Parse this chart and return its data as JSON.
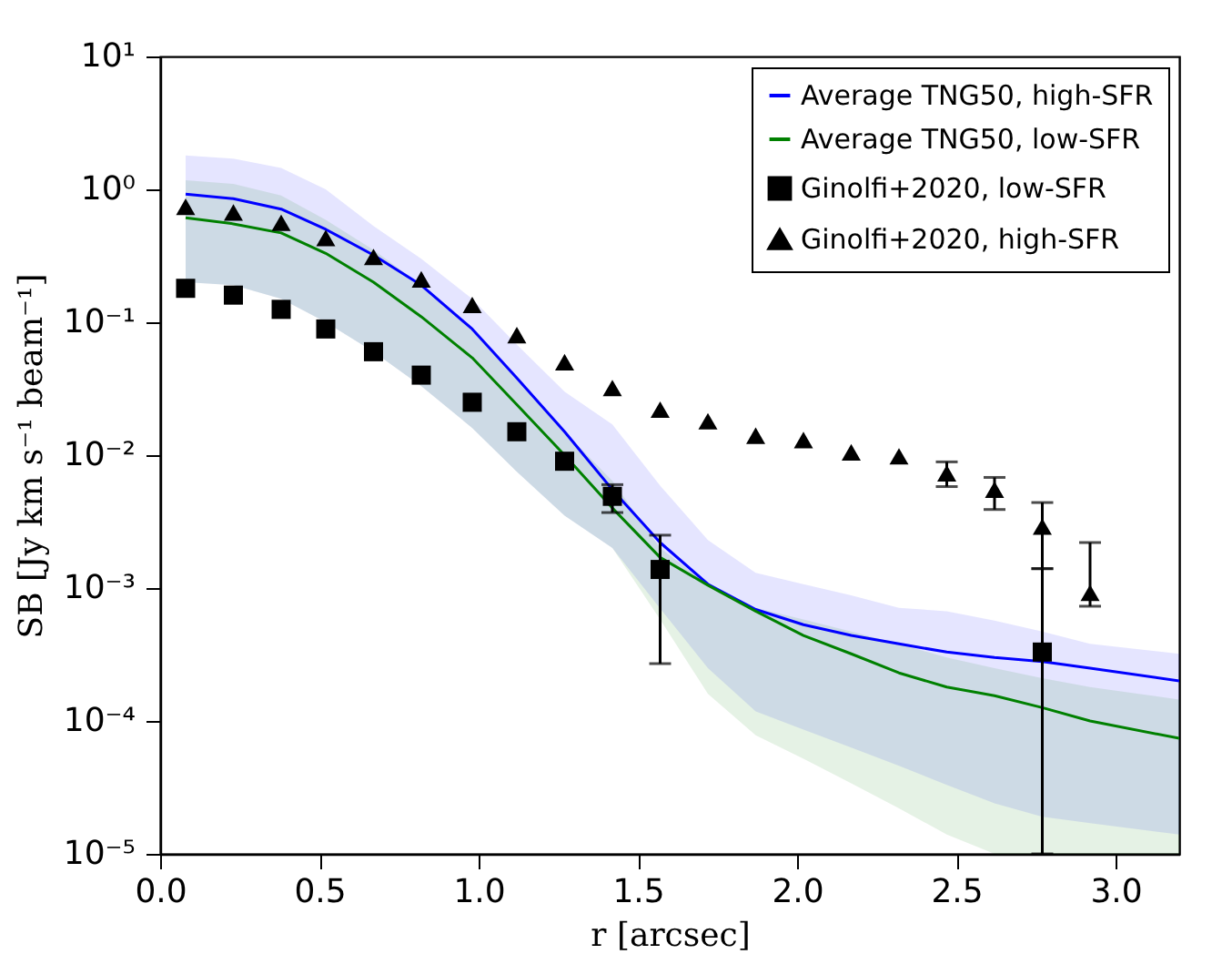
{
  "chart_data": {
    "type": "line",
    "xlabel": "r [arcsec]",
    "ylabel": "SB [Jy km s⁻¹ beam⁻¹]",
    "log": "y",
    "legend": "top right",
    "xlim": [
      0,
      3.2
    ],
    "xticks": [
      {
        "value": 0,
        "label": "0.0"
      },
      {
        "value": 0.5,
        "label": "0.5"
      },
      {
        "value": 1,
        "label": "1.0"
      },
      {
        "value": 1.5,
        "label": "1.5"
      },
      {
        "value": 2,
        "label": "2.0"
      },
      {
        "value": 2.5,
        "label": "2.5"
      },
      {
        "value": 3,
        "label": "3.0"
      }
    ],
    "ylim": [
      1e-05,
      10
    ],
    "yticks": [
      {
        "value": 1e-05,
        "label": "10⁻⁵"
      },
      {
        "value": 0.0001,
        "label": "10⁻⁴"
      },
      {
        "value": 0.001,
        "label": "10⁻³"
      },
      {
        "value": 0.01,
        "label": "10⁻²"
      },
      {
        "value": 0.1,
        "label": "10⁻¹"
      },
      {
        "value": 1,
        "label": "10⁰"
      },
      {
        "value": 10,
        "label": "10¹"
      }
    ],
    "x": [
      0.08,
      0.23,
      0.38,
      0.52,
      0.67,
      0.82,
      0.98,
      1.12,
      1.27,
      1.42,
      1.57,
      1.72,
      1.87,
      2.02,
      2.17,
      2.32,
      2.47,
      2.62,
      2.77,
      2.92
    ],
    "series": [
      {
        "name": "Average TNG50, high-SFR",
        "type": "line",
        "color": "#0000ff",
        "x": [
          0.08,
          0.23,
          0.38,
          0.52,
          0.67,
          0.82,
          0.98,
          1.12,
          1.27,
          1.42,
          1.57,
          1.72,
          1.87,
          2.02,
          2.17,
          2.32,
          2.47,
          2.62,
          2.77,
          2.92,
          3.2
        ],
        "values": [
          0.92,
          0.85,
          0.71,
          0.5,
          0.32,
          0.19,
          0.089,
          0.038,
          0.015,
          0.0055,
          0.0022,
          0.00107,
          0.00069,
          0.00053,
          0.00044,
          0.00038,
          0.00033,
          0.0003,
          0.00028,
          0.00025,
          0.0002
        ],
        "upper": [
          1.8,
          1.7,
          1.45,
          1.0,
          0.53,
          0.3,
          0.15,
          0.068,
          0.03,
          0.017,
          0.0059,
          0.0023,
          0.0013,
          0.00107,
          0.00088,
          0.00071,
          0.00067,
          0.00057,
          0.00047,
          0.00038,
          0.00032
        ],
        "lower": [
          0.2,
          0.19,
          0.15,
          0.1,
          0.06,
          0.033,
          0.016,
          0.0075,
          0.0035,
          0.002,
          0.0007,
          0.00025,
          0.000118,
          8.6e-05,
          6.3e-05,
          4.6e-05,
          3.3e-05,
          2.4e-05,
          1.9e-05,
          1.7e-05,
          1.4e-05
        ]
      },
      {
        "name": "Average TNG50, low-SFR",
        "type": "line",
        "color": "#008000",
        "x": [
          0.08,
          0.23,
          0.38,
          0.52,
          0.67,
          0.82,
          0.98,
          1.12,
          1.27,
          1.42,
          1.57,
          1.72,
          1.87,
          2.02,
          2.17,
          2.32,
          2.47,
          2.62,
          2.77,
          2.92,
          3.2
        ],
        "values": [
          0.61,
          0.55,
          0.47,
          0.33,
          0.2,
          0.11,
          0.054,
          0.024,
          0.01,
          0.004,
          0.0017,
          0.00105,
          0.00067,
          0.00044,
          0.00032,
          0.00023,
          0.00018,
          0.000155,
          0.000126,
          0.0001,
          7.4e-05
        ],
        "upper": [
          1.17,
          1.1,
          0.9,
          0.59,
          0.35,
          0.19,
          0.089,
          0.037,
          0.015,
          0.0064,
          0.002,
          0.00107,
          0.00071,
          0.00058,
          0.00047,
          0.00038,
          0.0003,
          0.00025,
          0.00021,
          0.00018,
          0.000145
        ],
        "lower": [
          0.2,
          0.19,
          0.15,
          0.1,
          0.06,
          0.033,
          0.016,
          0.0075,
          0.0035,
          0.002,
          0.00058,
          0.00016,
          7.8e-05,
          5.2e-05,
          3.4e-05,
          2.2e-05,
          1.4e-05,
          1e-05,
          1e-05,
          1e-05,
          1e-05
        ]
      },
      {
        "name": "Ginolfi+2020, low-SFR",
        "type": "scatter",
        "marker": "square",
        "color": "#000000",
        "values": [
          0.18,
          0.16,
          0.125,
          0.089,
          0.06,
          0.04,
          0.025,
          0.015,
          0.009,
          0.0049,
          0.00138,
          null,
          null,
          null,
          null,
          null,
          null,
          null,
          0.00033,
          null
        ],
        "errors": [
          null,
          null,
          null,
          null,
          null,
          null,
          null,
          null,
          null,
          [
            0.0037,
            0.006
          ],
          [
            0.00027,
            0.0025
          ],
          null,
          null,
          null,
          null,
          null,
          null,
          null,
          [
            1e-05,
            0.0014
          ],
          null
        ]
      },
      {
        "name": "Ginolfi+2020, high-SFR",
        "type": "scatter",
        "marker": "triangle",
        "color": "#000000",
        "values": [
          0.74,
          0.67,
          0.56,
          0.43,
          0.31,
          0.21,
          0.135,
          0.08,
          0.05,
          0.032,
          0.022,
          0.018,
          0.014,
          0.013,
          0.0105,
          0.0098,
          0.0073,
          0.0055,
          0.0029,
          0.00092
        ],
        "errors": [
          null,
          null,
          null,
          null,
          null,
          null,
          null,
          null,
          null,
          null,
          null,
          null,
          null,
          null,
          null,
          null,
          [
            0.0058,
            0.0089
          ],
          [
            0.0039,
            0.0068
          ],
          [
            0.0014,
            0.0044
          ],
          [
            0.00073,
            0.0022
          ]
        ]
      }
    ]
  }
}
